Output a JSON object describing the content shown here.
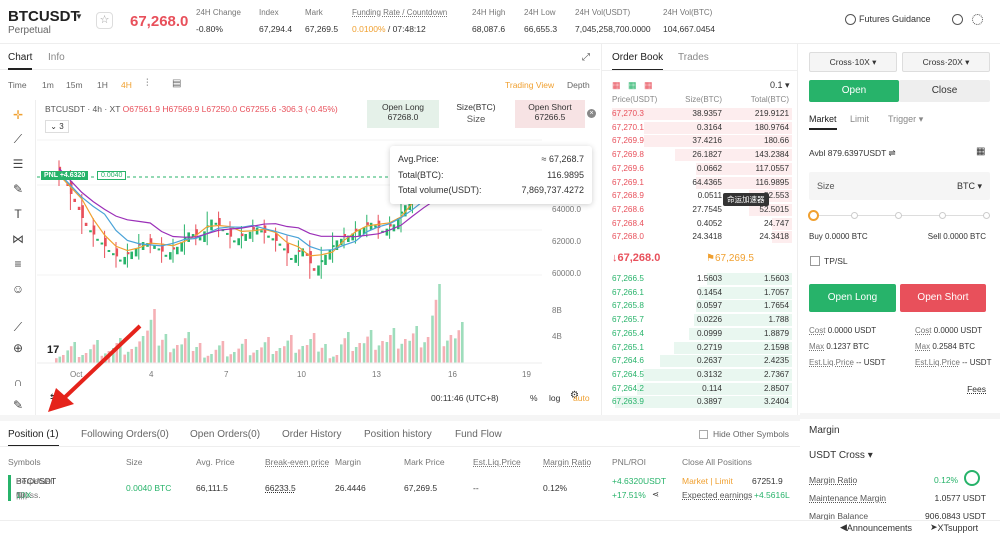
{
  "header": {
    "symbol": "BTCUSDT",
    "sub": "Perpetual",
    "price": "67,268.0",
    "stats": [
      {
        "label": "24H Change",
        "value": "-0.80%"
      },
      {
        "label": "Index",
        "value": "67,294.4"
      },
      {
        "label": "Mark",
        "value": "67,269.5"
      },
      {
        "label": "Funding Rate / Countdown",
        "value_rate": "0.0100%",
        "value_time": " / 07:48:12"
      },
      {
        "label": "24H High",
        "value": "68,087.6"
      },
      {
        "label": "24H Low",
        "value": "66,655.3"
      },
      {
        "label": "24H Vol(USDT)",
        "value": "7,045,258,700.0000"
      },
      {
        "label": "24H Vol(BTC)",
        "value": "104,667.0454"
      }
    ],
    "guidance": "Futures Guidance"
  },
  "chart_tabs": {
    "chart": "Chart",
    "info": "Info"
  },
  "toolbar": {
    "time": "Time",
    "intervals": [
      "1m",
      "15m",
      "1H",
      "4H"
    ],
    "tradingview": "Trading View",
    "depth": "Depth"
  },
  "chart_info": {
    "title": "BTCUSDT · 4h · XT",
    "o": "O67561.9",
    "h": "H67569.9",
    "l": "L67250.0",
    "c": "C67255.6",
    "chg": "-306.3",
    "chgpct": "(-0.45%)",
    "count": "3",
    "open_long": "Open Long",
    "open_long_price": "67268.0",
    "size_label": "Size(BTC)",
    "size_ph": "Size",
    "open_short": "Open Short",
    "open_short_price": "67266.5",
    "pnl_tag": "PNL +4.6320",
    "pnl_val": "0.0040"
  },
  "tooltip": {
    "rows": [
      {
        "k": "Avg.Price:",
        "v": "≈ 67,268.7"
      },
      {
        "k": "Total(BTC):",
        "v": "116.9895"
      },
      {
        "k": "Total volume(USDT):",
        "v": "7,869,737.4272"
      }
    ]
  },
  "chart_data": {
    "type": "candlestick",
    "yticks": [
      "64000.0",
      "62000.0",
      "60000.0"
    ],
    "vol_ticks": [
      "8B",
      "4B"
    ],
    "xticks": [
      "Oct",
      "4",
      "7",
      "10",
      "13",
      "16",
      "19"
    ]
  },
  "chart_bottom": {
    "time": "00:11:46 (UTC+8)",
    "pct": "%",
    "log": "log",
    "auto": "auto"
  },
  "orderbook": {
    "tabs": [
      "Order Book",
      "Trades"
    ],
    "step": "0.1",
    "cols": [
      "Price(USDT)",
      "Size(BTC)",
      "Total(BTC)"
    ],
    "asks": [
      [
        "67,270.3",
        "38.9357",
        "219.9121"
      ],
      [
        "67,270.1",
        "0.3164",
        "180.9764"
      ],
      [
        "67,269.9",
        "37.4216",
        "180.66"
      ],
      [
        "67,269.8",
        "26.1827",
        "143.2384"
      ],
      [
        "67,269.6",
        "0.0662",
        "117.0557"
      ],
      [
        "67,269.1",
        "64.4365",
        "116.9895"
      ],
      [
        "67,268.9",
        "0.0511",
        "52.553"
      ],
      [
        "67,268.6",
        "27.7545",
        "52.5015"
      ],
      [
        "67,268.4",
        "0.4052",
        "24.747"
      ],
      [
        "67,268.0",
        "24.3418",
        "24.3418"
      ]
    ],
    "tip": "命运加速器",
    "last": "67,268.0",
    "mark": "67,269.5",
    "bids": [
      [
        "67,266.5",
        "1.5603",
        "1.5603"
      ],
      [
        "67,266.1",
        "0.1454",
        "1.7057"
      ],
      [
        "67,265.8",
        "0.0597",
        "1.7654"
      ],
      [
        "67,265.7",
        "0.0226",
        "1.788"
      ],
      [
        "67,265.4",
        "0.0999",
        "1.8879"
      ],
      [
        "67,265.1",
        "0.2719",
        "2.1598"
      ],
      [
        "67,264.6",
        "0.2637",
        "2.4235"
      ],
      [
        "67,264.5",
        "0.3132",
        "2.7367"
      ],
      [
        "67,264.2",
        "0.114",
        "2.8507"
      ],
      [
        "67,263.9",
        "0.3897",
        "3.2404"
      ]
    ]
  },
  "trade": {
    "cross_long": "Cross·10X",
    "cross_short": "Cross·20X",
    "open": "Open",
    "close": "Close",
    "types": [
      "Market",
      "Limit",
      "Trigger"
    ],
    "avbl": "Avbl 879.6397USDT",
    "size": "Size",
    "unit": "BTC",
    "buy": "Buy 0.0000 BTC",
    "sell": "Sell 0.0000 BTC",
    "tpsl": "TP/SL",
    "open_long": "Open Long",
    "open_short": "Open Short",
    "cost_l": "Cost",
    "cost_v1": "0.0000 USDT",
    "cost_v2": "0.0000 USDT",
    "max_l": "Max",
    "max_v1": "0.1237 BTC",
    "max_v2": "0.2584 BTC",
    "liq_l": "Est.Liq.Price",
    "liq_v1": "-- USDT",
    "liq_v2": "-- USDT",
    "fees": "Fees"
  },
  "margin": {
    "title": "Margin",
    "mode": "USDT Cross",
    "ratio_l": "Margin Ratio",
    "ratio_v": "0.12%",
    "maint_l": "Maintenance Margin",
    "maint_v": "1.0577 USDT",
    "bal_l": "Margin Balance",
    "bal_v": "906.0843 USDT"
  },
  "positions": {
    "tabs": [
      "Position (1)",
      "Following Orders(0)",
      "Open Orders(0)",
      "Order History",
      "Position history",
      "Fund Flow"
    ],
    "hide": "Hide Other Symbols",
    "cols": [
      "Symbols",
      "Size",
      "Avg. Price",
      "Break-even price",
      "Margin",
      "Mark Price",
      "Est.Liq.Price",
      "Margin Ratio",
      "PNL/ROI",
      "Close All Positions"
    ],
    "row": {
      "sym": "BTCUSDT",
      "type": "Perpetual",
      "cross": "Cross.",
      "lev": "10X",
      "size": "0.0040 BTC",
      "avg": "66,111.5",
      "be": "66233.5",
      "margin": "26.4446",
      "mark": "67,269.5",
      "liq": "--",
      "ratio": "0.12%",
      "pnl": "+4.6320USDT",
      "roi": "+17.51%",
      "ml": "Market | Limit",
      "close_val": "67251.9",
      "exp": "Expected earnings",
      "exp_v": "+4.5616L"
    }
  },
  "footer": {
    "ann": "Announcements",
    "support": "XTsupport"
  }
}
